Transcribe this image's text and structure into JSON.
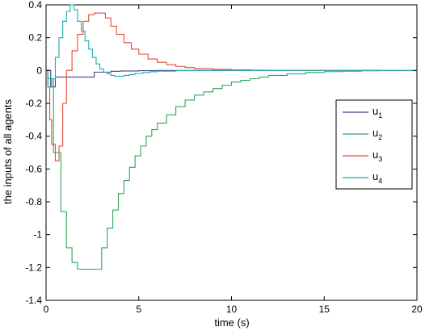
{
  "chart_data": {
    "type": "line",
    "step": true,
    "xlabel": "time (s)",
    "ylabel": "the inputs of all agents",
    "xlim": [
      0,
      20
    ],
    "ylim": [
      -1.4,
      0.4
    ],
    "xticks": [
      0,
      5,
      10,
      15,
      20
    ],
    "yticks": [
      -1.4,
      -1.2,
      -1,
      -0.8,
      -0.6,
      -0.4,
      -0.2,
      0,
      0.2,
      0.4
    ],
    "xtick_labels": [
      "0",
      "5",
      "10",
      "15",
      "20"
    ],
    "ytick_labels": [
      "-1.4",
      "-1.2",
      "-1",
      "-0.8",
      "-0.6",
      "-0.4",
      "-0.2",
      "0",
      "0.2",
      "0.4"
    ],
    "grid": false,
    "legend_position": "right",
    "series": [
      {
        "name": "u1",
        "base": "u",
        "sub": "1",
        "color": "#4b3a8c",
        "x": [
          0,
          0.25,
          0.5,
          1.25,
          2.4,
          2.6,
          3.0,
          3.5,
          4.0,
          5.0,
          6.0,
          8.0,
          10.0,
          20.0
        ],
        "y": [
          0,
          -0.1,
          -0.04,
          -0.04,
          -0.04,
          -0.01,
          -0.01,
          -0.005,
          -0.003,
          -0.001,
          0,
          0,
          0,
          0
        ]
      },
      {
        "name": "u2",
        "base": "u",
        "sub": "2",
        "color": "#2ca65a",
        "x": [
          0,
          0.1,
          0.4,
          0.8,
          1.1,
          1.4,
          1.7,
          2.0,
          2.3,
          3.0,
          3.3,
          3.6,
          3.9,
          4.2,
          4.5,
          4.8,
          5.1,
          5.4,
          5.7,
          6.0,
          6.5,
          7.0,
          7.5,
          8.0,
          8.5,
          9.0,
          9.5,
          10.0,
          10.5,
          11.0,
          11.5,
          12.0,
          13.0,
          14.0,
          15.0,
          16.0,
          17.0,
          18.0,
          20.0
        ],
        "y": [
          0,
          -0.05,
          -0.5,
          -0.86,
          -1.08,
          -1.17,
          -1.21,
          -1.21,
          -1.21,
          -1.08,
          -0.96,
          -0.85,
          -0.75,
          -0.67,
          -0.59,
          -0.52,
          -0.46,
          -0.4,
          -0.36,
          -0.32,
          -0.27,
          -0.22,
          -0.18,
          -0.15,
          -0.13,
          -0.11,
          -0.09,
          -0.07,
          -0.06,
          -0.05,
          -0.04,
          -0.03,
          -0.02,
          -0.012,
          -0.007,
          -0.004,
          -0.002,
          -0.001,
          0
        ]
      },
      {
        "name": "u3",
        "base": "u",
        "sub": "3",
        "color": "#e8463a",
        "x": [
          0,
          0.1,
          0.2,
          0.3,
          0.5,
          0.7,
          0.9,
          1.1,
          1.4,
          1.7,
          2.0,
          2.3,
          2.6,
          2.9,
          3.2,
          3.5,
          3.8,
          4.2,
          4.6,
          5.0,
          5.5,
          6.0,
          6.5,
          7.0,
          7.5,
          8.0,
          9.0,
          10.0,
          11.0,
          12.0,
          14.0,
          20.0
        ],
        "y": [
          0,
          -0.1,
          -0.3,
          -0.45,
          -0.55,
          -0.46,
          -0.2,
          0.0,
          0.12,
          0.22,
          0.3,
          0.34,
          0.35,
          0.35,
          0.32,
          0.27,
          0.22,
          0.17,
          0.13,
          0.1,
          0.07,
          0.05,
          0.035,
          0.025,
          0.018,
          0.012,
          0.007,
          0.004,
          0.002,
          0.001,
          0,
          0
        ]
      },
      {
        "name": "u4",
        "base": "u",
        "sub": "4",
        "color": "#17b0b0",
        "x": [
          0,
          0.1,
          0.3,
          0.5,
          0.7,
          0.9,
          1.1,
          1.3,
          1.5,
          1.7,
          1.9,
          2.1,
          2.3,
          2.5,
          2.7,
          2.9,
          3.1,
          3.3,
          3.5,
          3.7,
          3.9,
          4.2,
          4.5,
          4.8,
          5.2,
          5.6,
          6.0,
          7.0,
          8.0,
          20.0
        ],
        "y": [
          0,
          -0.1,
          -0.05,
          0.08,
          0.2,
          0.3,
          0.36,
          0.4,
          0.37,
          0.3,
          0.24,
          0.18,
          0.13,
          0.08,
          0.04,
          0.01,
          -0.01,
          -0.02,
          -0.03,
          -0.035,
          -0.035,
          -0.03,
          -0.025,
          -0.018,
          -0.012,
          -0.008,
          -0.004,
          -0.001,
          0,
          0
        ]
      }
    ]
  }
}
